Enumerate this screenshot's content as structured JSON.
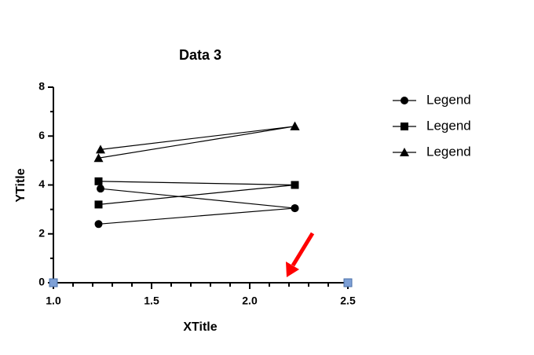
{
  "chart_data": {
    "type": "line",
    "title": "Data 3",
    "x_label": "XTitle",
    "y_label": "YTitle",
    "xlim": [
      1.0,
      2.5
    ],
    "ylim": [
      0,
      8
    ],
    "xticks": [
      {
        "value": 1.0,
        "label": "1.0"
      },
      {
        "value": 1.5,
        "label": "1.5"
      },
      {
        "value": 2.0,
        "label": "2.0"
      },
      {
        "value": 2.5,
        "label": "2.5"
      }
    ],
    "xminor_ticks": [
      1.1,
      1.2,
      1.3,
      1.4,
      1.6,
      1.7,
      1.8,
      1.9,
      2.1,
      2.2,
      2.3,
      2.4
    ],
    "yticks": [
      0,
      2,
      4,
      6,
      8
    ],
    "yminor_ticks": [
      1,
      3,
      5,
      7
    ],
    "legend": "right",
    "series": [
      {
        "name": "Legend",
        "marker": "circle",
        "color": "#000000",
        "x": [
          1.23,
          2.23,
          null,
          1.24,
          2.23
        ],
        "values": [
          2.4,
          3.05,
          null,
          3.85,
          3.05
        ]
      },
      {
        "name": "Legend",
        "marker": "square",
        "color": "#000000",
        "x": [
          1.23,
          2.23,
          null,
          1.23,
          2.23
        ],
        "values": [
          4.15,
          4.0,
          null,
          3.2,
          4.0
        ]
      },
      {
        "name": "Legend",
        "marker": "triangle",
        "color": "#000000",
        "x": [
          1.24,
          2.23,
          null,
          1.23,
          2.23
        ],
        "values": [
          5.45,
          6.4,
          null,
          5.1,
          6.4
        ]
      }
    ]
  }
}
